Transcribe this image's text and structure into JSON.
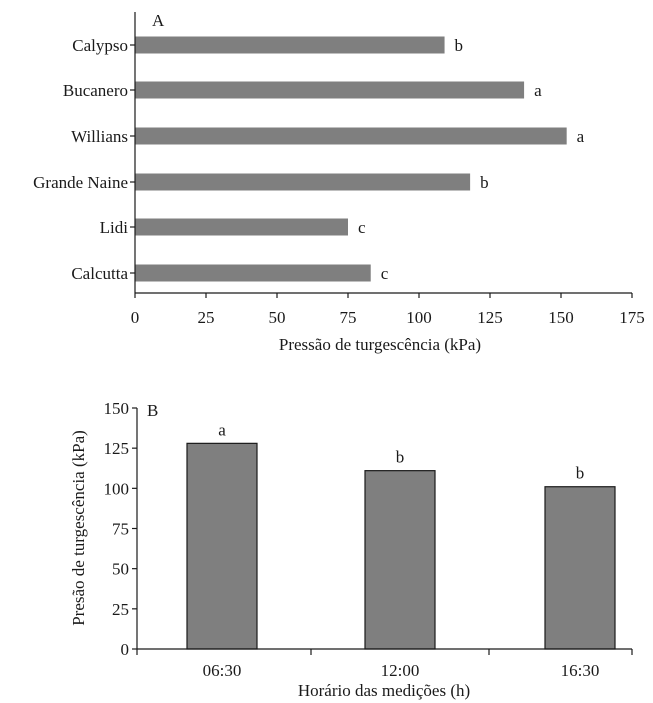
{
  "chart_data": [
    {
      "type": "bar",
      "orientation": "horizontal",
      "panel_label": "A",
      "categories": [
        "Calypso",
        "Bucanero",
        "Willians",
        "Grande Naine",
        "Lidi",
        "Calcutta"
      ],
      "values": [
        109,
        137,
        152,
        118,
        75,
        83
      ],
      "letters": [
        "b",
        "a",
        "a",
        "b",
        "c",
        "c"
      ],
      "xlabel": "Pressão de turgescência (kPa)",
      "ylabel": "",
      "xlim": [
        0,
        175
      ],
      "xticks": [
        "0",
        "25",
        "50",
        "75",
        "100",
        "125",
        "150",
        "175"
      ],
      "bar_color": "#7f7f7f",
      "grid": false
    },
    {
      "type": "bar",
      "orientation": "vertical",
      "panel_label": "B",
      "categories": [
        "06:30",
        "12:00",
        "16:30"
      ],
      "values": [
        128,
        111,
        101
      ],
      "letters": [
        "a",
        "b",
        "b"
      ],
      "xlabel": "Horário das medições (h)",
      "ylabel": "Presão de turgescência (kPa)",
      "ylim": [
        0,
        150
      ],
      "yticks": [
        "0",
        "25",
        "50",
        "75",
        "100",
        "125",
        "150"
      ],
      "bar_color": "#7f7f7f",
      "grid": false
    }
  ]
}
